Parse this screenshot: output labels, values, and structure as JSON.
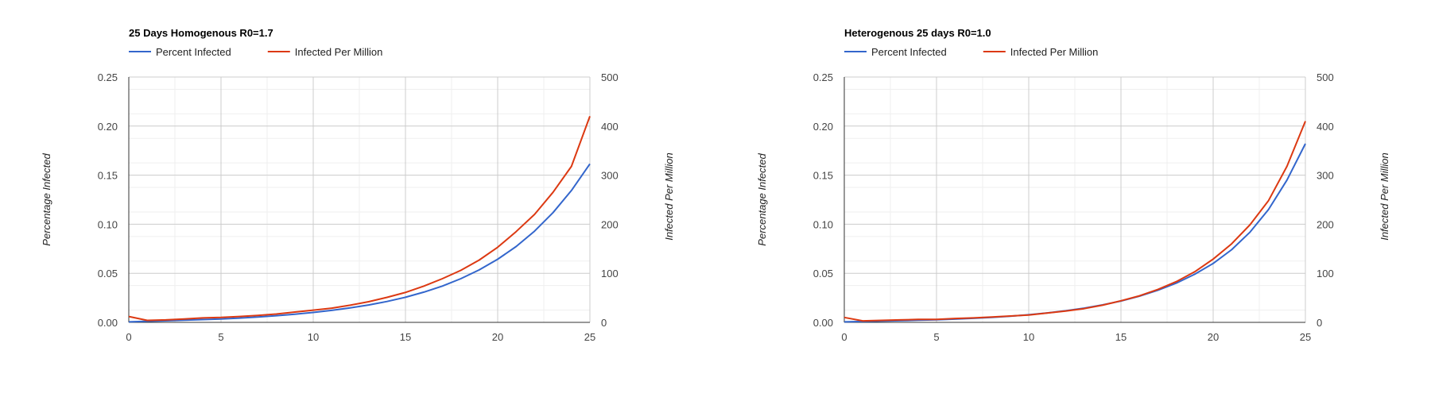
{
  "chart_data": [
    {
      "type": "line",
      "title": "25 Days Homogenous R0=1.7",
      "x": [
        0,
        1,
        2,
        3,
        4,
        5,
        6,
        7,
        8,
        9,
        10,
        11,
        12,
        13,
        14,
        15,
        16,
        17,
        18,
        19,
        20,
        21,
        22,
        23,
        24,
        25
      ],
      "xlim": [
        0,
        25
      ],
      "xticks": [
        "0",
        "5",
        "10",
        "15",
        "20",
        "25"
      ],
      "ylabel": "Percentage Infected",
      "y2label": "Infected Per Million",
      "ylim": [
        0,
        0.25
      ],
      "y2lim": [
        0,
        500
      ],
      "yticks": [
        "0.00",
        "0.05",
        "0.10",
        "0.15",
        "0.20",
        "0.25"
      ],
      "y2ticks": [
        "0",
        "100",
        "200",
        "300",
        "400",
        "500"
      ],
      "grid": true,
      "legend_position": "top-left",
      "series": [
        {
          "name": "Percent Infected",
          "axis": "left",
          "color": "#3366cc",
          "values": [
            0.0005,
            0.0011,
            0.0016,
            0.0022,
            0.0028,
            0.0035,
            0.0044,
            0.0055,
            0.0068,
            0.0083,
            0.0101,
            0.0122,
            0.0147,
            0.0177,
            0.0213,
            0.0256,
            0.0308,
            0.037,
            0.0445,
            0.0535,
            0.0643,
            0.0773,
            0.093,
            0.1118,
            0.1344,
            0.1615
          ]
        },
        {
          "name": "Infected Per Million",
          "axis": "right",
          "color": "#dc3912",
          "values": [
            12,
            4,
            5,
            7,
            9,
            10,
            12,
            14,
            17,
            21,
            25,
            29,
            35,
            42,
            51,
            61,
            74,
            89,
            106,
            127,
            153,
            185,
            220,
            265,
            318,
            420
          ]
        }
      ]
    },
    {
      "type": "line",
      "title": "Heterogenous 25 days R0=1.0",
      "x": [
        0,
        1,
        2,
        3,
        4,
        5,
        6,
        7,
        8,
        9,
        10,
        11,
        12,
        13,
        14,
        15,
        16,
        17,
        18,
        19,
        20,
        21,
        22,
        23,
        24,
        25
      ],
      "xlim": [
        0,
        25
      ],
      "xticks": [
        "0",
        "5",
        "10",
        "15",
        "20",
        "25"
      ],
      "ylabel": "Percentage Infected",
      "y2label": "Infected Per Million",
      "ylim": [
        0,
        0.25
      ],
      "y2lim": [
        0,
        500
      ],
      "yticks": [
        "0.00",
        "0.05",
        "0.10",
        "0.15",
        "0.20",
        "0.25"
      ],
      "y2ticks": [
        "0",
        "100",
        "200",
        "300",
        "400",
        "500"
      ],
      "grid": true,
      "legend_position": "top-left",
      "series": [
        {
          "name": "Percent Infected",
          "axis": "left",
          "color": "#3366cc",
          "values": [
            0.0005,
            0.0009,
            0.0013,
            0.0017,
            0.0022,
            0.0027,
            0.0033,
            0.0041,
            0.0051,
            0.0063,
            0.0078,
            0.0096,
            0.0118,
            0.0145,
            0.0178,
            0.0218,
            0.0267,
            0.0327,
            0.04,
            0.049,
            0.06,
            0.074,
            0.092,
            0.115,
            0.145,
            0.182
          ]
        },
        {
          "name": "Infected Per Million",
          "axis": "right",
          "color": "#dc3912",
          "values": [
            10,
            3,
            4,
            5,
            6,
            6,
            8,
            9,
            11,
            13,
            15,
            19,
            23,
            28,
            35,
            44,
            54,
            67,
            83,
            103,
            129,
            160,
            199,
            248,
            318,
            410
          ]
        }
      ]
    }
  ]
}
